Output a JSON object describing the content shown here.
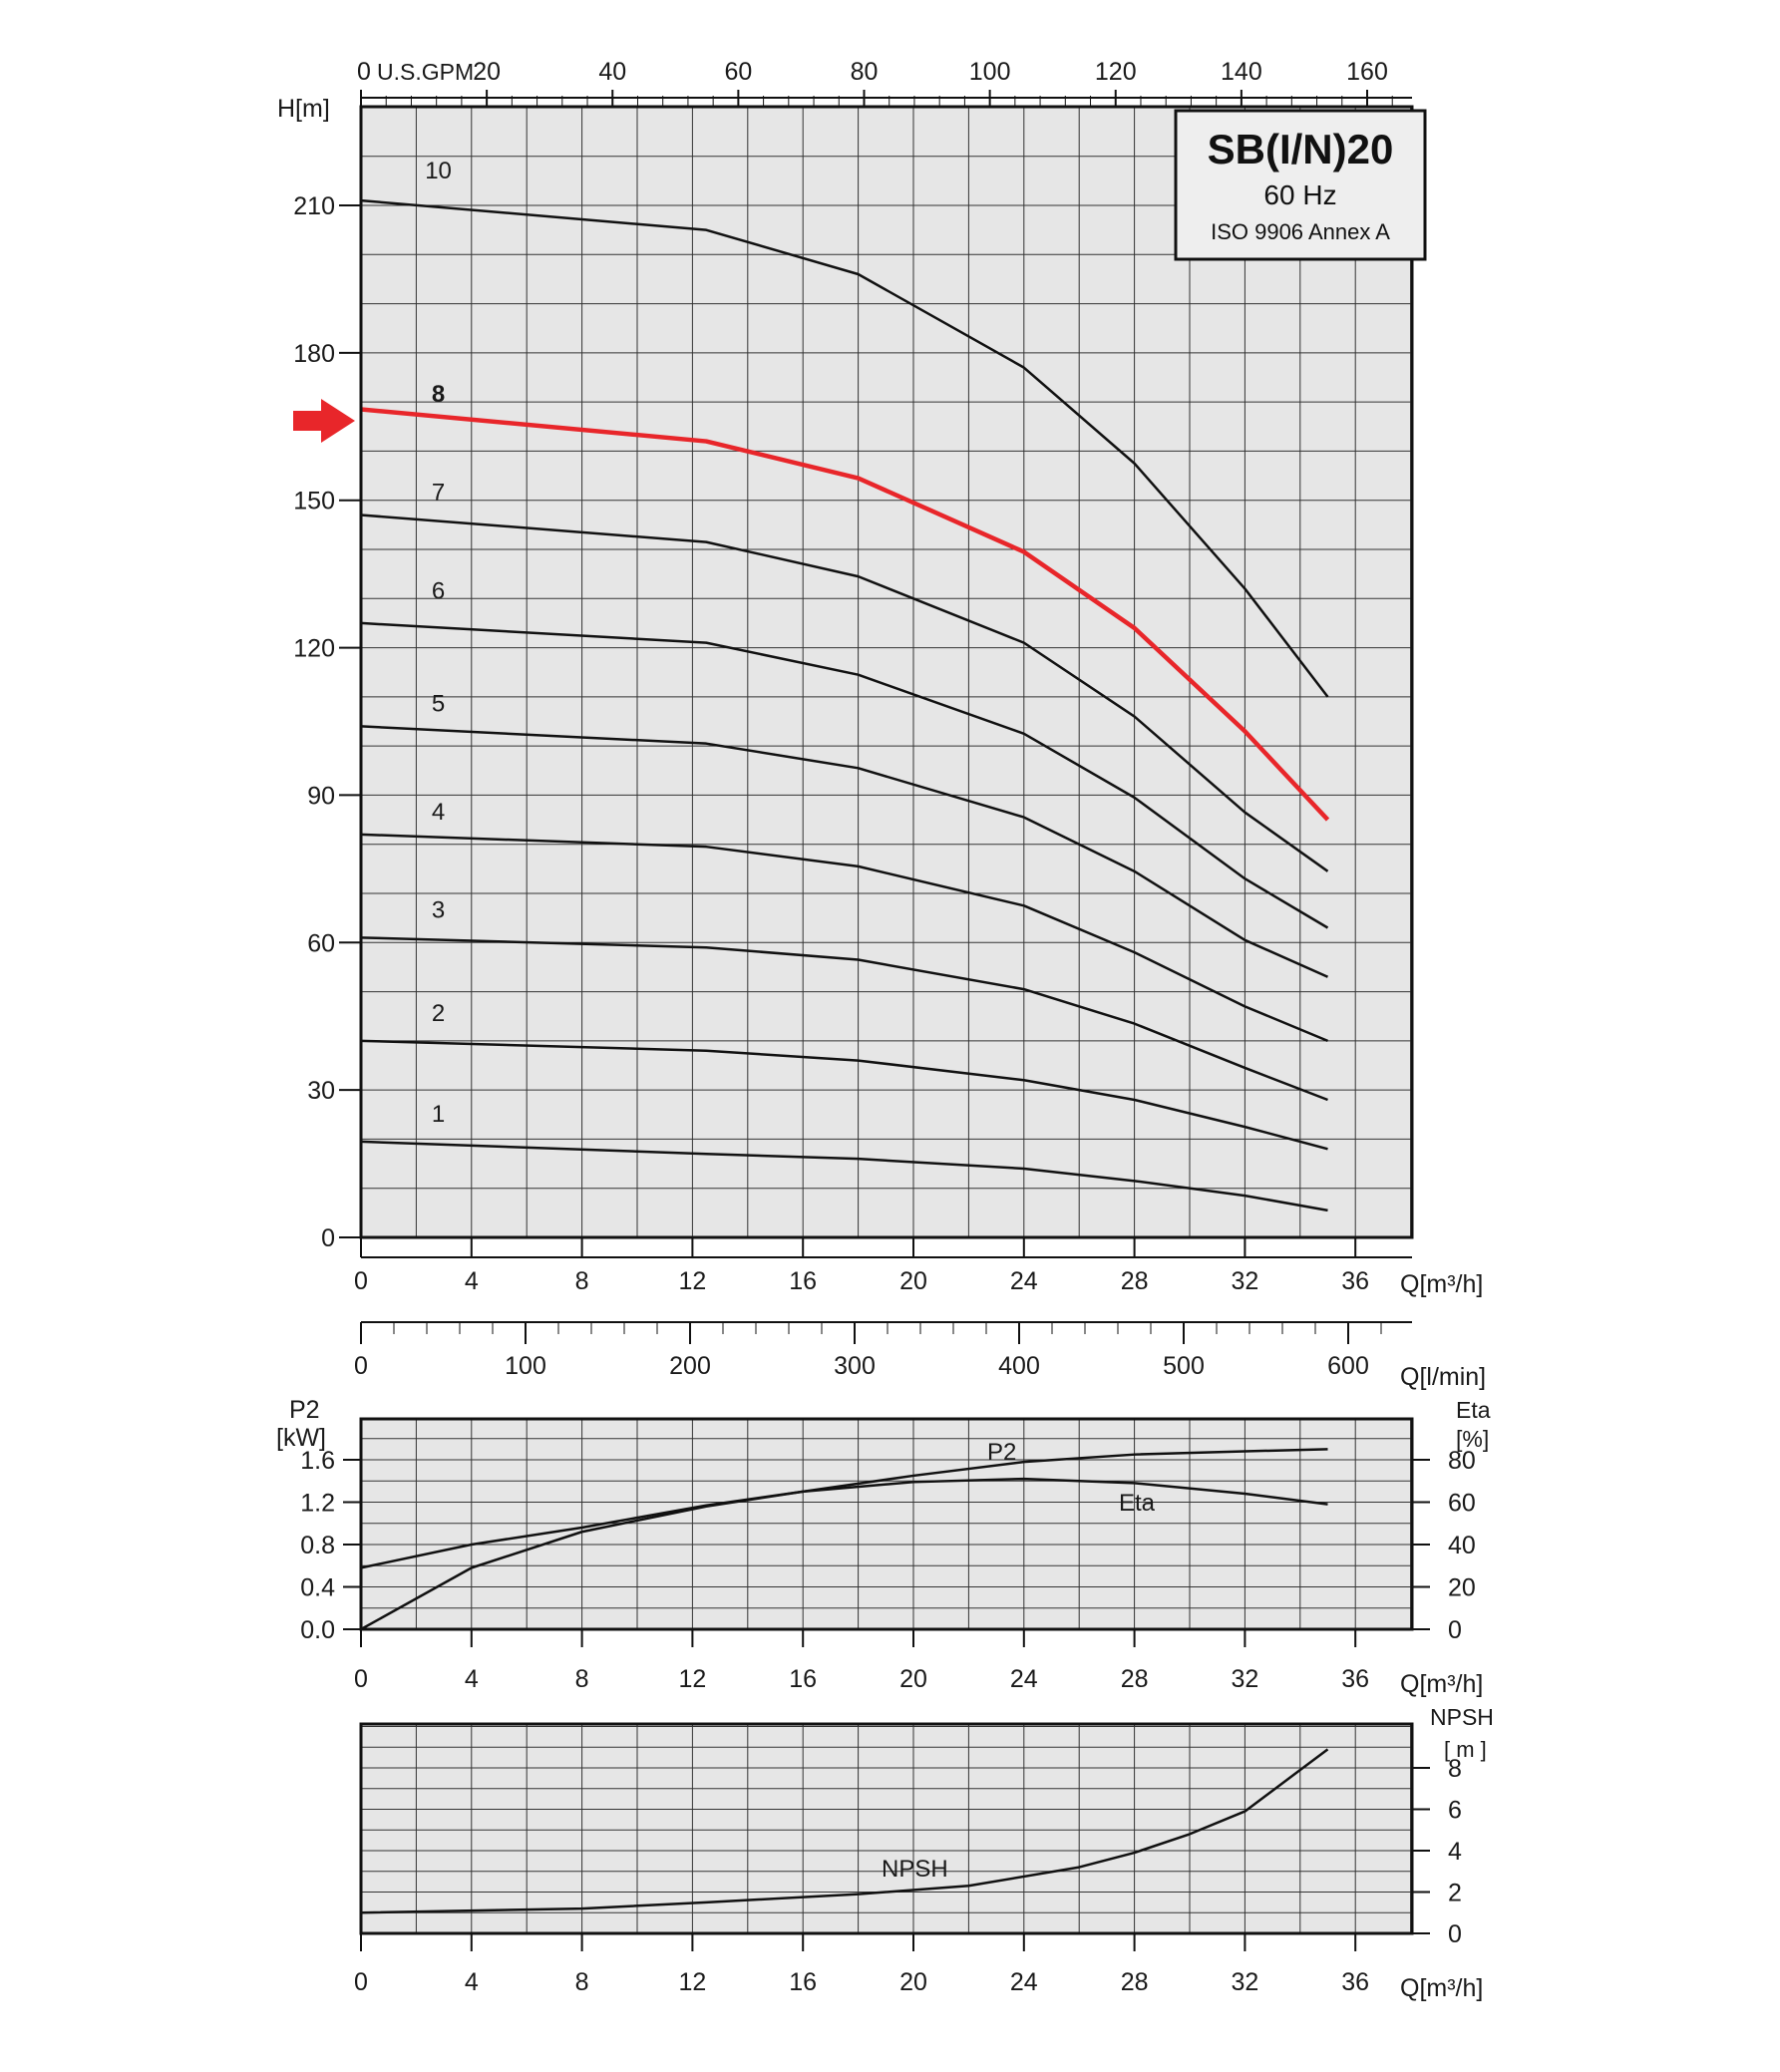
{
  "title": "SB(I/N)20",
  "frequency": "60 Hz",
  "standard": "ISO 9906 Annex A",
  "colors": {
    "plot_bg": "#e6e6e6",
    "grid": "#333333",
    "curve": "#111111",
    "highlight": "#e8262a"
  },
  "chart_data": [
    {
      "type": "line",
      "name": "head",
      "ylabel": "H[m]",
      "xlabel": "Q[m³/h]",
      "x2label": "U.S.GPM",
      "xlim": [
        0,
        38
      ],
      "ylim": [
        0,
        220
      ],
      "yticks": [
        0,
        30,
        60,
        90,
        120,
        150,
        180,
        210
      ],
      "xticks": [
        0,
        4,
        8,
        12,
        16,
        20,
        24,
        28,
        32,
        36
      ],
      "x2ticks": [
        0,
        20,
        40,
        60,
        80,
        100,
        120,
        140,
        160
      ],
      "highlighted_series": "8",
      "series": [
        {
          "name": "1",
          "x": [
            0,
            12.5,
            18,
            24,
            28,
            32,
            35
          ],
          "y": [
            19.5,
            17,
            16,
            14,
            11.5,
            8.5,
            5.5
          ]
        },
        {
          "name": "2",
          "x": [
            0,
            12.5,
            18,
            24,
            28,
            32,
            35
          ],
          "y": [
            40,
            38,
            36,
            32,
            28,
            22.5,
            18
          ]
        },
        {
          "name": "3",
          "x": [
            0,
            12.5,
            18,
            24,
            28,
            32,
            35
          ],
          "y": [
            61,
            59,
            56.5,
            50.5,
            43.5,
            34.5,
            28
          ]
        },
        {
          "name": "4",
          "x": [
            0,
            12.5,
            18,
            24,
            28,
            32,
            35
          ],
          "y": [
            82,
            79.5,
            75.5,
            67.5,
            58,
            47,
            40
          ]
        },
        {
          "name": "5",
          "x": [
            0,
            12.5,
            18,
            24,
            28,
            32,
            35
          ],
          "y": [
            104,
            100.5,
            95.5,
            85.5,
            74.5,
            60.5,
            53
          ]
        },
        {
          "name": "6",
          "x": [
            0,
            12.5,
            18,
            24,
            28,
            32,
            35
          ],
          "y": [
            125,
            121,
            114.5,
            102.5,
            89.5,
            73,
            63
          ]
        },
        {
          "name": "7",
          "x": [
            0,
            12.5,
            18,
            24,
            28,
            32,
            35
          ],
          "y": [
            147,
            141.5,
            134.5,
            121,
            106,
            86.5,
            74.5
          ]
        },
        {
          "name": "8",
          "x": [
            0,
            12.5,
            18,
            24,
            28,
            32,
            35
          ],
          "y": [
            168.5,
            162,
            154.5,
            139.5,
            124,
            103,
            85
          ]
        },
        {
          "name": "10",
          "x": [
            0,
            12.5,
            18,
            24,
            28,
            32,
            35
          ],
          "y": [
            211,
            205,
            196,
            177,
            157.5,
            132,
            110
          ]
        }
      ],
      "curve_labels": [
        {
          "series": "1",
          "x": 2.8,
          "y": 23.5
        },
        {
          "series": "2",
          "x": 2.8,
          "y": 44
        },
        {
          "series": "3",
          "x": 2.8,
          "y": 65
        },
        {
          "series": "4",
          "x": 2.8,
          "y": 85
        },
        {
          "series": "5",
          "x": 2.8,
          "y": 107
        },
        {
          "series": "6",
          "x": 2.8,
          "y": 130
        },
        {
          "series": "7",
          "x": 2.8,
          "y": 150
        },
        {
          "series": "8",
          "x": 2.8,
          "y": 170
        },
        {
          "series": "10",
          "x": 2.8,
          "y": 215.5
        }
      ]
    },
    {
      "type": "line",
      "name": "power_efficiency",
      "ylabel": "P2 [kW]",
      "y2label": "Eta [%]",
      "xlabel": "Q[m³/h]",
      "x2label": "Q[l/min]",
      "xlim": [
        0,
        38
      ],
      "ylim": [
        0,
        1.6
      ],
      "yticks": [
        0.0,
        0.4,
        0.8,
        1.2,
        1.6
      ],
      "ytick_labels": [
        "0.0",
        "0.4",
        "0.8",
        "1.2",
        "1.6"
      ],
      "y2ticks": [
        0,
        20,
        40,
        60,
        80
      ],
      "x2ticks": [
        0,
        100,
        200,
        300,
        400,
        500,
        600
      ],
      "series": [
        {
          "name": "P2",
          "axis": "left",
          "x": [
            0,
            4,
            8,
            12.5,
            16,
            20,
            24,
            28,
            32,
            35
          ],
          "y": [
            0.58,
            0.8,
            0.96,
            1.17,
            1.3,
            1.45,
            1.58,
            1.65,
            1.68,
            1.7
          ]
        },
        {
          "name": "Eta",
          "axis": "right",
          "x": [
            0,
            4,
            8,
            12.5,
            16,
            20,
            24,
            28,
            32,
            35
          ],
          "y": [
            0,
            29,
            46,
            58,
            65,
            69.5,
            71,
            69,
            64,
            59
          ]
        }
      ]
    },
    {
      "type": "line",
      "name": "npsh",
      "y2label": "NPSH [ m ]",
      "xlabel": "Q[m³/h]",
      "xlim": [
        0,
        38
      ],
      "ylim": [
        0,
        10
      ],
      "y2ticks": [
        0,
        2,
        4,
        6,
        8
      ],
      "series": [
        {
          "name": "NPSH",
          "x": [
            0,
            8,
            12.5,
            18,
            22,
            26,
            28,
            30,
            32,
            33,
            35
          ],
          "y": [
            1.0,
            1.2,
            1.5,
            1.9,
            2.3,
            3.2,
            3.9,
            4.8,
            5.9,
            6.9,
            8.9
          ]
        }
      ]
    }
  ],
  "labels": {
    "head_ylabel": "H[m]",
    "q_m3h": "Q[m³/h]",
    "q_lmin": "Q[l/min]",
    "us_gpm": "U.S.GPM",
    "p2_top": "P2",
    "p2_unit": "[kW]",
    "eta_top": "Eta",
    "eta_unit": "[%]",
    "npsh_top": "NPSH",
    "npsh_unit": "[ m ]",
    "p2_curve": "P2",
    "eta_curve": "Eta",
    "npsh_curve": "NPSH"
  }
}
